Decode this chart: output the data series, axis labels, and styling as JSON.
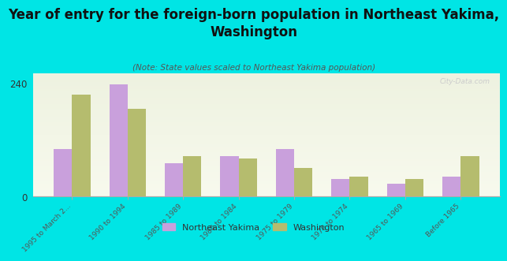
{
  "title": "Year of entry for the foreign-born population in Northeast Yakima,\nWashington",
  "subtitle": "(Note: State values scaled to Northeast Yakima population)",
  "categories": [
    "1995 to March 2...",
    "1990 to 1994",
    "1985 to 1989",
    "1980 to 1984",
    "1975 to 1979",
    "1970 to 1974",
    "1965 to 1969",
    "Before 1965"
  ],
  "northeast_yakima": [
    100,
    238,
    70,
    85,
    100,
    38,
    28,
    42
  ],
  "washington": [
    215,
    185,
    85,
    80,
    60,
    42,
    37,
    85
  ],
  "bar_color_ny": "#c9a0dc",
  "bar_color_wa": "#b5bc6e",
  "background_color": "#00e5e5",
  "plot_bg_top": "#eef2e0",
  "plot_bg_bottom": "#f8f8ee",
  "ylim": [
    0,
    260
  ],
  "yticks": [
    0,
    240
  ],
  "watermark": "City-Data.com",
  "legend_ny": "Northeast Yakima",
  "legend_wa": "Washington",
  "title_fontsize": 12,
  "subtitle_fontsize": 7.5
}
